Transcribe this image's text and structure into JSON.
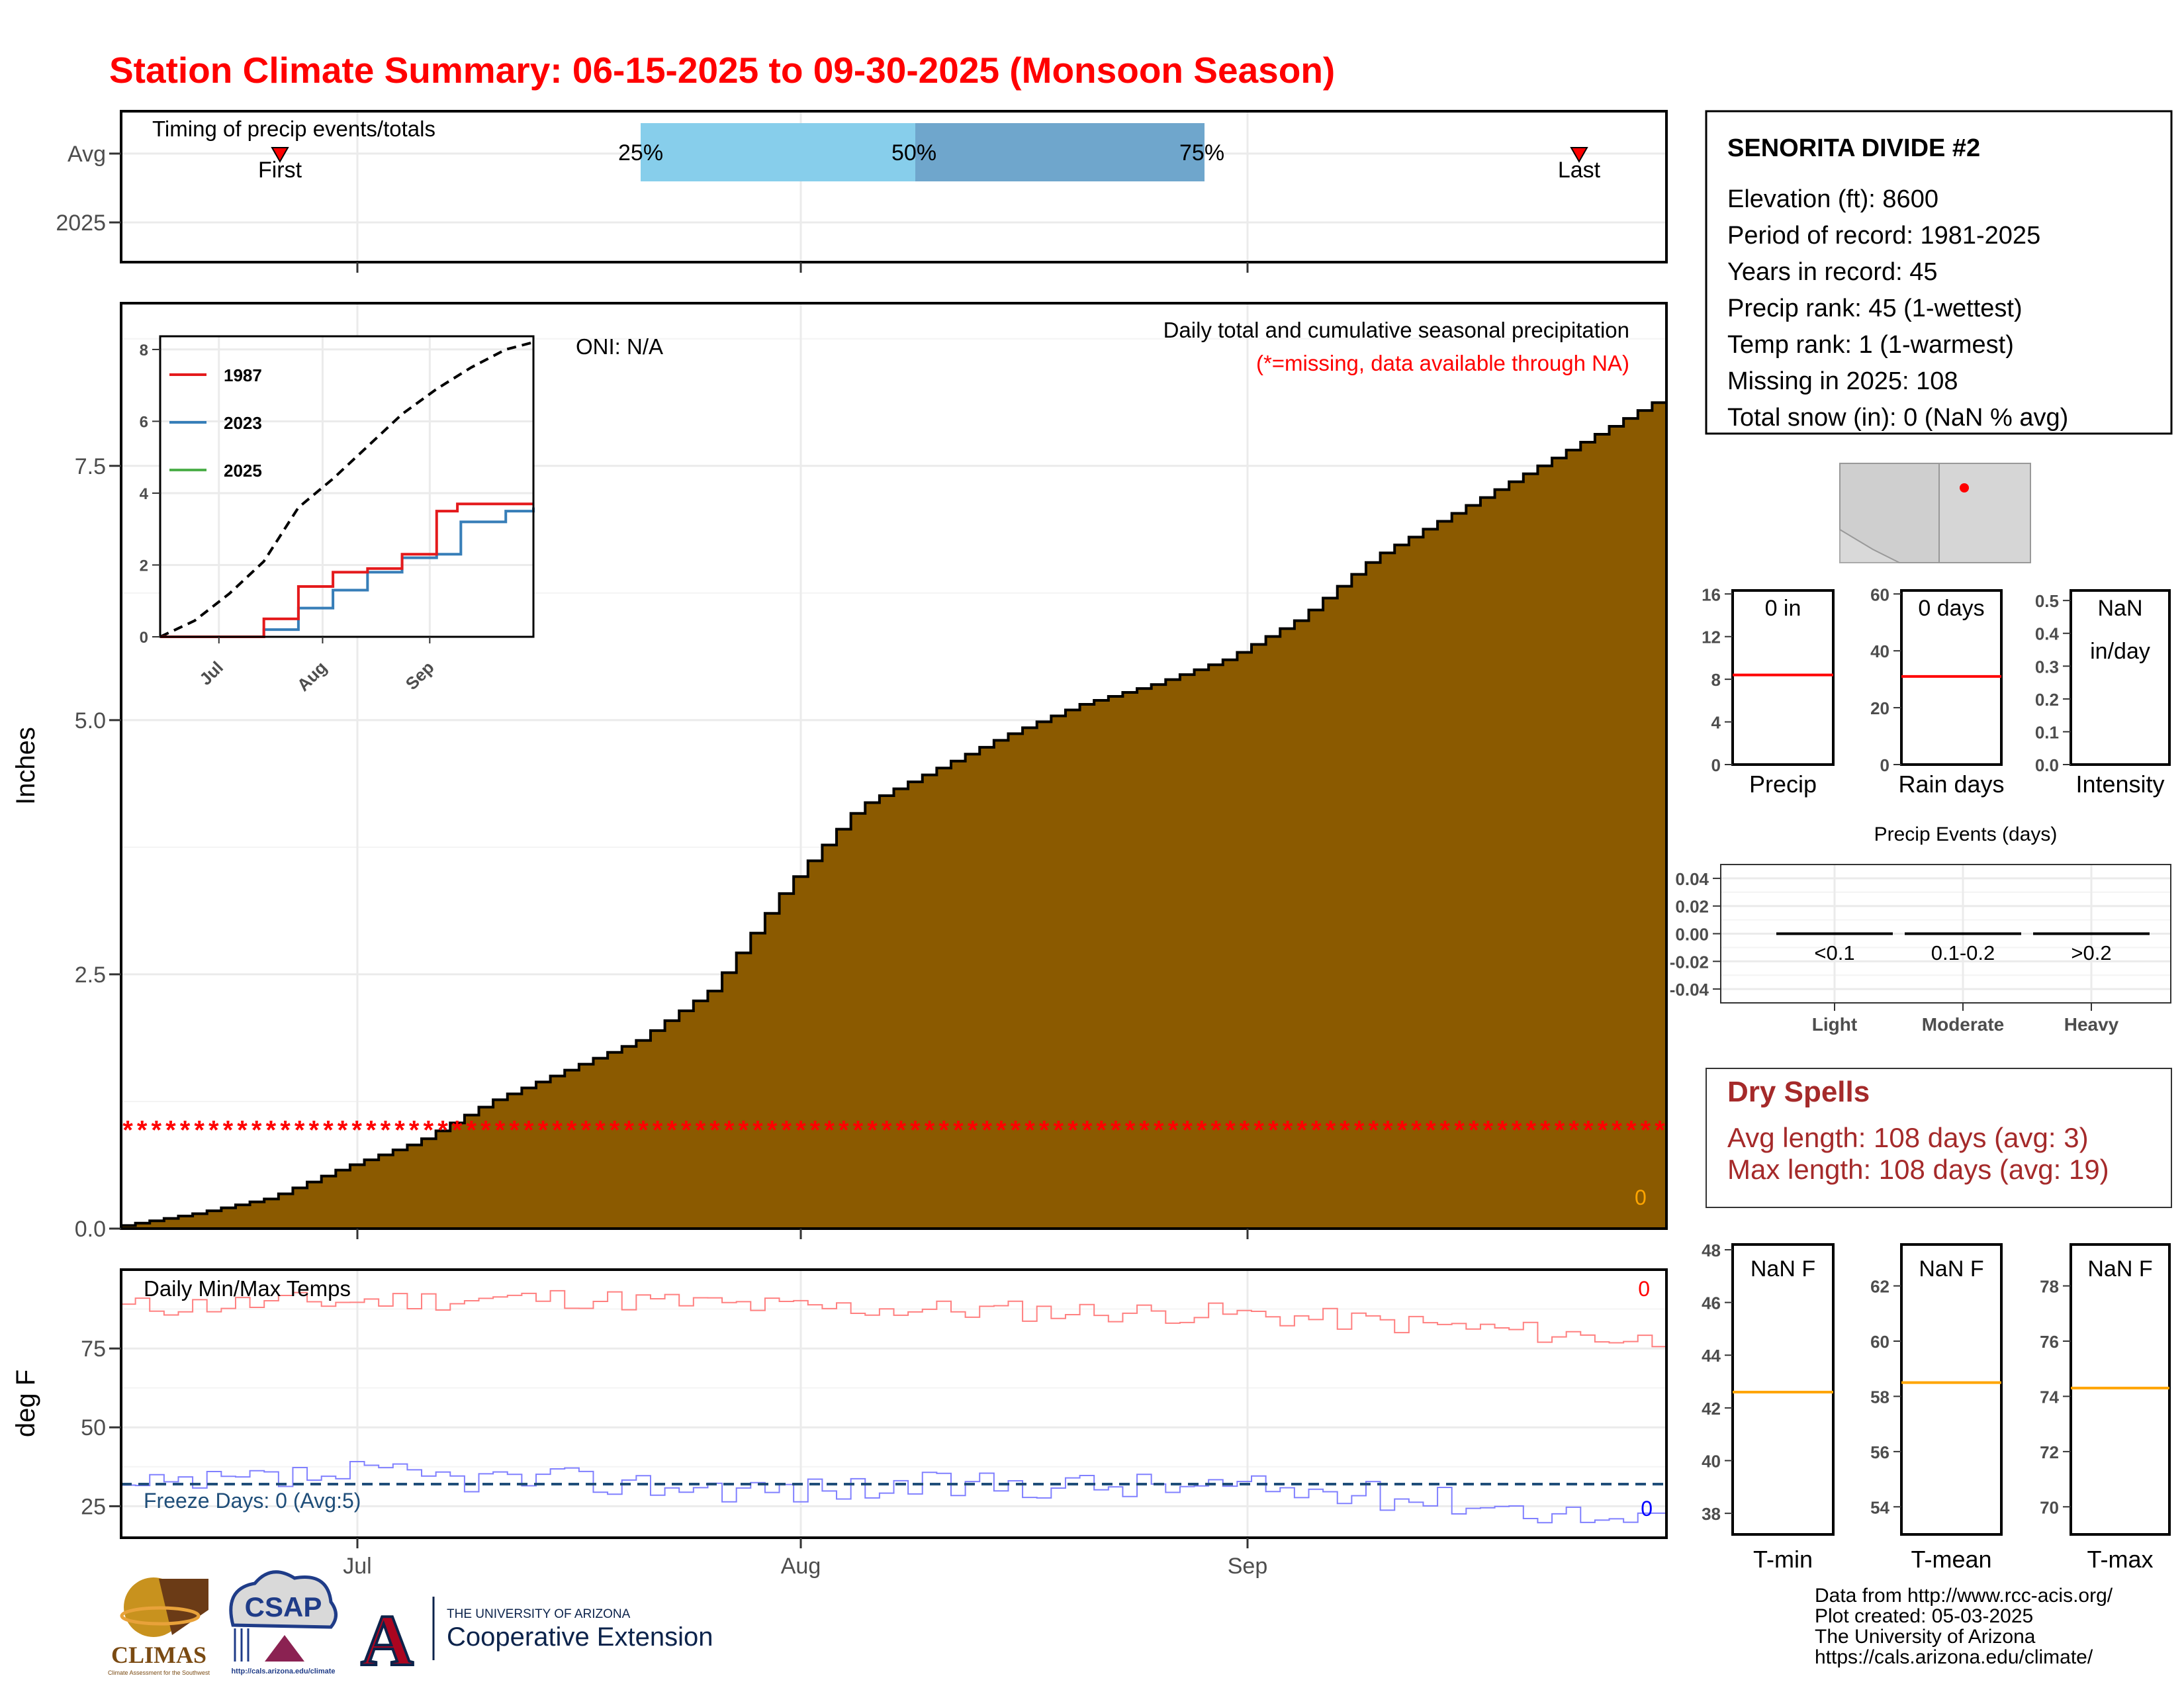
{
  "title": "Station Climate Summary: 06-15-2025 to 09-30-2025 (Monsoon Season)",
  "colors": {
    "title": "#ff0000",
    "cumulative_fill": "#8b5a00",
    "missing_marker": "#ff0000",
    "tmax": "#ff8080",
    "tmin": "#8080ff",
    "freeze": "#1f4e79",
    "dry_spells": "#a52a2a",
    "q1": "#87ceeb",
    "q2": "#6fa6cc",
    "year_1987": "#e41a1c",
    "year_2023": "#377eb8",
    "year_2025": "#4daf4a",
    "orange": "#ffa500"
  },
  "timing_panel": {
    "label": "Timing of precip events/totals",
    "rows": [
      "Avg",
      "2025"
    ],
    "first_label": "First",
    "last_label": "Last",
    "quartile_labels": [
      "25%",
      "50%",
      "75%"
    ]
  },
  "station": {
    "name": "SENORITA DIVIDE #2",
    "lines": [
      "Elevation (ft): 8600",
      "Period of record: 1981-2025",
      "Years in record: 45",
      "Precip rank: 45 (1-wettest)",
      "Temp rank: 1 (1-warmest)",
      "Missing in 2025: 108",
      "Total snow (in): 0 (NaN % avg)"
    ]
  },
  "mini_stats": [
    {
      "label": "Precip",
      "value": "0 in",
      "value2": "",
      "ticks": [
        "0",
        "4",
        "8",
        "12",
        "16"
      ]
    },
    {
      "label": "Rain days",
      "value": "0 days",
      "value2": "",
      "ticks": [
        "0",
        "20",
        "40",
        "60"
      ]
    },
    {
      "label": "Intensity",
      "value": "NaN",
      "value2": "in/day",
      "ticks": [
        "0.0",
        "0.1",
        "0.2",
        "0.3",
        "0.4",
        "0.5"
      ]
    }
  ],
  "precip_events": {
    "title": "Precip Events (days)",
    "ticks": [
      "0.04",
      "0.02",
      "0.00",
      "-0.02",
      "-0.04"
    ],
    "categories": [
      "Light",
      "Moderate",
      "Heavy"
    ],
    "ranges": [
      "<0.1",
      "0.1-0.2",
      ">0.2"
    ]
  },
  "dry_spells": {
    "title": "Dry Spells",
    "avg": "Avg length: 108 days (avg: 3)",
    "max": "Max length: 108 days (avg: 19)"
  },
  "temp_stats": [
    {
      "label": "T-min",
      "value": "NaN F",
      "ticks": [
        "38",
        "40",
        "42",
        "44",
        "46",
        "48"
      ]
    },
    {
      "label": "T-mean",
      "value": "NaN F",
      "ticks": [
        "54",
        "56",
        "58",
        "60",
        "62"
      ]
    },
    {
      "label": "T-max",
      "value": "NaN F",
      "ticks": [
        "70",
        "72",
        "74",
        "76",
        "78"
      ]
    }
  ],
  "main_panel": {
    "ylabel": "Inches",
    "ticks": [
      "0.0",
      "2.5",
      "5.0",
      "7.5"
    ],
    "header": "Daily total and cumulative seasonal precipitation",
    "subheader": "(*=missing, data available through NA)",
    "oni": "ONI: N/A",
    "zero_label": "0"
  },
  "inset": {
    "ticks": [
      "0",
      "2",
      "4",
      "6",
      "8"
    ],
    "months": [
      "Jul",
      "Aug",
      "Sep"
    ],
    "legend": [
      "1987",
      "2023",
      "2025"
    ]
  },
  "temp_panel": {
    "ylabel": "deg F",
    "label": "Daily Min/Max Temps",
    "ticks": [
      "25",
      "50",
      "75"
    ],
    "freeze": "Freeze Days: 0 (Avg:5)",
    "max_count": "0",
    "min_count": "0"
  },
  "x_months": [
    "Jul",
    "Aug",
    "Sep"
  ],
  "footer": {
    "lines": [
      "Data from http://www.rcc-acis.org/",
      "Plot created: 05-03-2025",
      "The University of Arizona",
      "https://cals.arizona.edu/climate/"
    ]
  },
  "logos": {
    "climas": "CLIMAS",
    "climas_sub": "Climate Assessment for the Southwest",
    "csap": "CSAP",
    "csap_url": "http://cals.arizona.edu/climate",
    "ua_letter": "A",
    "ua_line1": "THE UNIVERSITY OF ARIZONA",
    "ua_line2": "Cooperative Extension"
  },
  "chart_data": [
    {
      "type": "area",
      "title": "Daily total and cumulative seasonal precipitation",
      "ylabel": "Inches",
      "ylim": [
        0,
        9.1
      ],
      "series": [
        {
          "name": "",
          "x": [
            "06-15",
            "06-20",
            "06-25",
            "07-01",
            "07-05",
            "07-10",
            "07-15",
            "07-20",
            "07-25",
            "07-31",
            "08-05",
            "08-10",
            "08-15",
            "08-20",
            "08-25",
            "08-31",
            "09-05",
            "09-10",
            "09-15",
            "09-20",
            "09-25",
            "09-30"
          ],
          "values": [
            0.03,
            0.15,
            0.3,
            0.6,
            0.85,
            1.25,
            1.55,
            1.85,
            2.35,
            3.35,
            4.15,
            4.5,
            4.85,
            5.15,
            5.35,
            5.6,
            6.0,
            6.6,
            7.0,
            7.4,
            7.8,
            8.2
          ]
        }
      ],
      "missing_marker_y": 1.0,
      "missing_days": 108
    },
    {
      "type": "line",
      "title": "",
      "ylim": [
        0,
        8
      ],
      "x_months": [
        "Jul",
        "Aug",
        "Sep"
      ],
      "series": [
        {
          "name": "",
          "style": "dashed",
          "x": [
            0,
            10,
            20,
            30,
            40,
            50,
            60,
            70,
            80,
            90,
            100,
            108
          ],
          "values": [
            0,
            0.45,
            1.2,
            2.1,
            3.6,
            4.4,
            5.3,
            6.2,
            6.9,
            7.5,
            8.0,
            8.2
          ]
        },
        {
          "name": "1987",
          "x": [
            0,
            20,
            30,
            40,
            50,
            60,
            70,
            80,
            86,
            108
          ],
          "values": [
            0,
            0,
            0.5,
            1.4,
            1.8,
            1.9,
            2.3,
            3.5,
            3.7,
            3.7
          ]
        },
        {
          "name": "2023",
          "x": [
            0,
            20,
            30,
            40,
            50,
            60,
            70,
            80,
            87,
            100,
            108
          ],
          "values": [
            0,
            0,
            0.2,
            0.8,
            1.3,
            1.8,
            2.2,
            2.3,
            3.2,
            3.5,
            3.6
          ]
        },
        {
          "name": "2025",
          "x": [],
          "values": []
        }
      ]
    },
    {
      "type": "line",
      "title": "Daily Min/Max Temps",
      "ylabel": "deg F",
      "ylim": [
        15,
        100
      ],
      "series": [
        {
          "name": "",
          "x": [
            "06-15",
            "07-01",
            "07-15",
            "08-01",
            "08-15",
            "09-01",
            "09-15",
            "09-30"
          ],
          "values": [
            88,
            90,
            91,
            88,
            87,
            86,
            82,
            77
          ]
        },
        {
          "name": "",
          "x": [
            "06-15",
            "07-01",
            "07-15",
            "08-01",
            "08-15",
            "09-01",
            "09-15",
            "09-30"
          ],
          "values": [
            30,
            35,
            33,
            30,
            32,
            31,
            27,
            19
          ]
        }
      ],
      "freeze_line_y": 32
    },
    {
      "type": "bar",
      "title": "Timing of precip events/totals",
      "categories": [
        "25%",
        "50%",
        "75%"
      ],
      "values": [
        0.35,
        0.53,
        0.71
      ]
    }
  ]
}
